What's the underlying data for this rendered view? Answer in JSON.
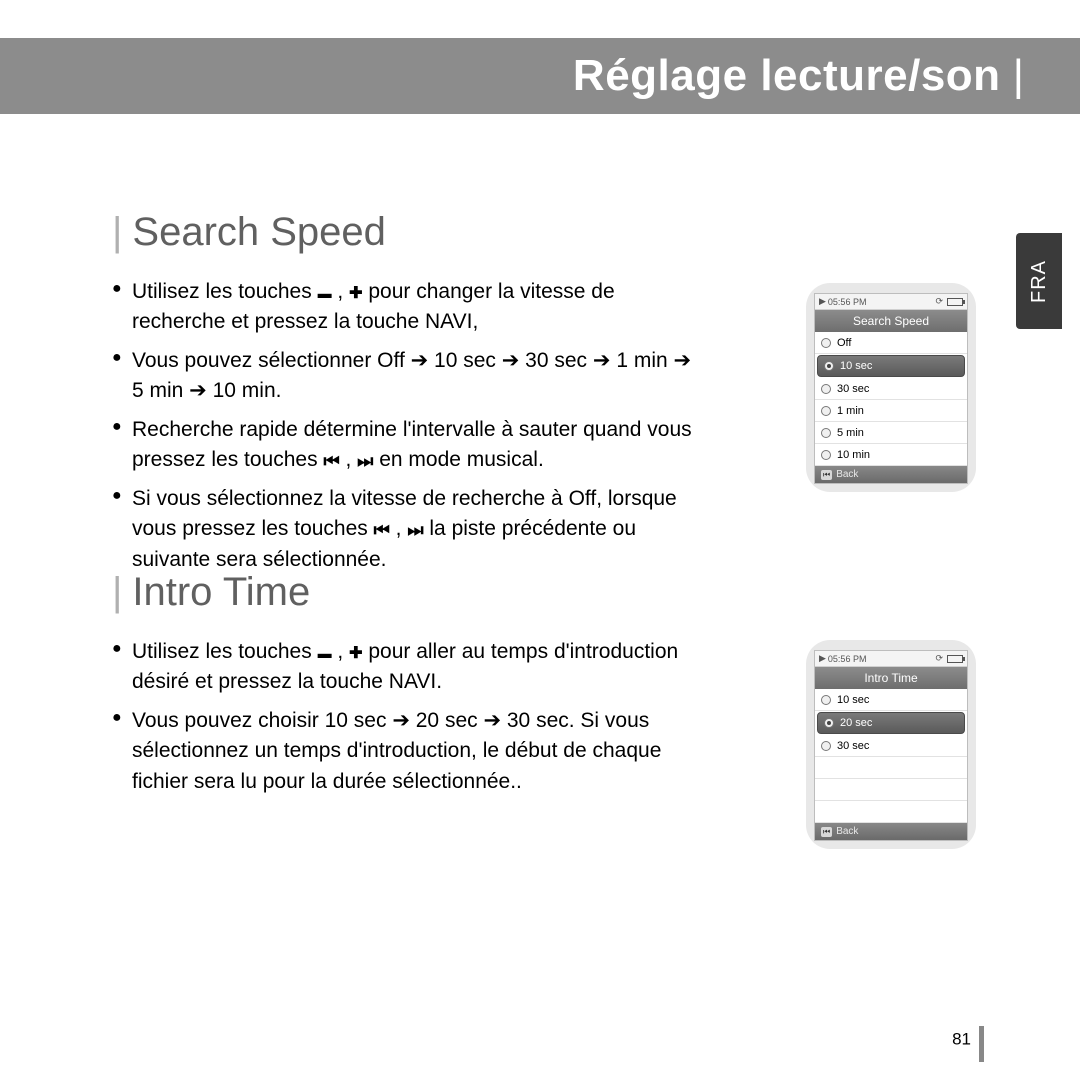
{
  "header": {
    "title": "Réglage lecture/son"
  },
  "side_tab": "FRA",
  "sections": {
    "search_speed": {
      "title": "Search Speed",
      "b1a": "Utilisez les touches ",
      "b1b": " , ",
      "b1c": " pour changer la vitesse de recherche et pressez la touche NAVI,",
      "b2": "Vous pouvez sélectionner Off ➔ 10 sec ➔ 30 sec ➔ 1 min ➔ 5 min ➔ 10 min.",
      "b3a": "Recherche rapide détermine l'intervalle à sauter quand vous pressez les touches  ",
      "b3b": " ,  ",
      "b3c": " en mode musical.",
      "b4a": "Si vous sélectionnez la vitesse de recherche à Off, lorsque vous pressez les touches  ",
      "b4b": " ,  ",
      "b4c": " la piste précédente ou suivante sera sélectionnée."
    },
    "intro_time": {
      "title": "Intro Time",
      "b1a": "Utilisez les touches  ",
      "b1b": " , ",
      "b1c": " pour aller au temps d'introduction désiré et pressez la touche NAVI.",
      "b2": "Vous pouvez choisir 10 sec ➔ 20 sec ➔ 30 sec. Si vous sélectionnez un temps d'introduction, le début de chaque fichier sera lu pour la durée sélectionnée.."
    }
  },
  "device_search": {
    "time": "05:56 PM",
    "title": "Search Speed",
    "options": [
      {
        "label": "Off",
        "selected": false
      },
      {
        "label": "10 sec",
        "selected": true
      },
      {
        "label": "30 sec",
        "selected": false
      },
      {
        "label": "1 min",
        "selected": false
      },
      {
        "label": "5 min",
        "selected": false
      },
      {
        "label": "10 min",
        "selected": false
      }
    ],
    "back": "Back"
  },
  "device_intro": {
    "time": "05:56 PM",
    "title": "Intro Time",
    "options": [
      {
        "label": "10 sec",
        "selected": false
      },
      {
        "label": "20 sec",
        "selected": true
      },
      {
        "label": "30 sec",
        "selected": false
      }
    ],
    "empty_rows": 3,
    "back": "Back"
  },
  "page_number": "81"
}
